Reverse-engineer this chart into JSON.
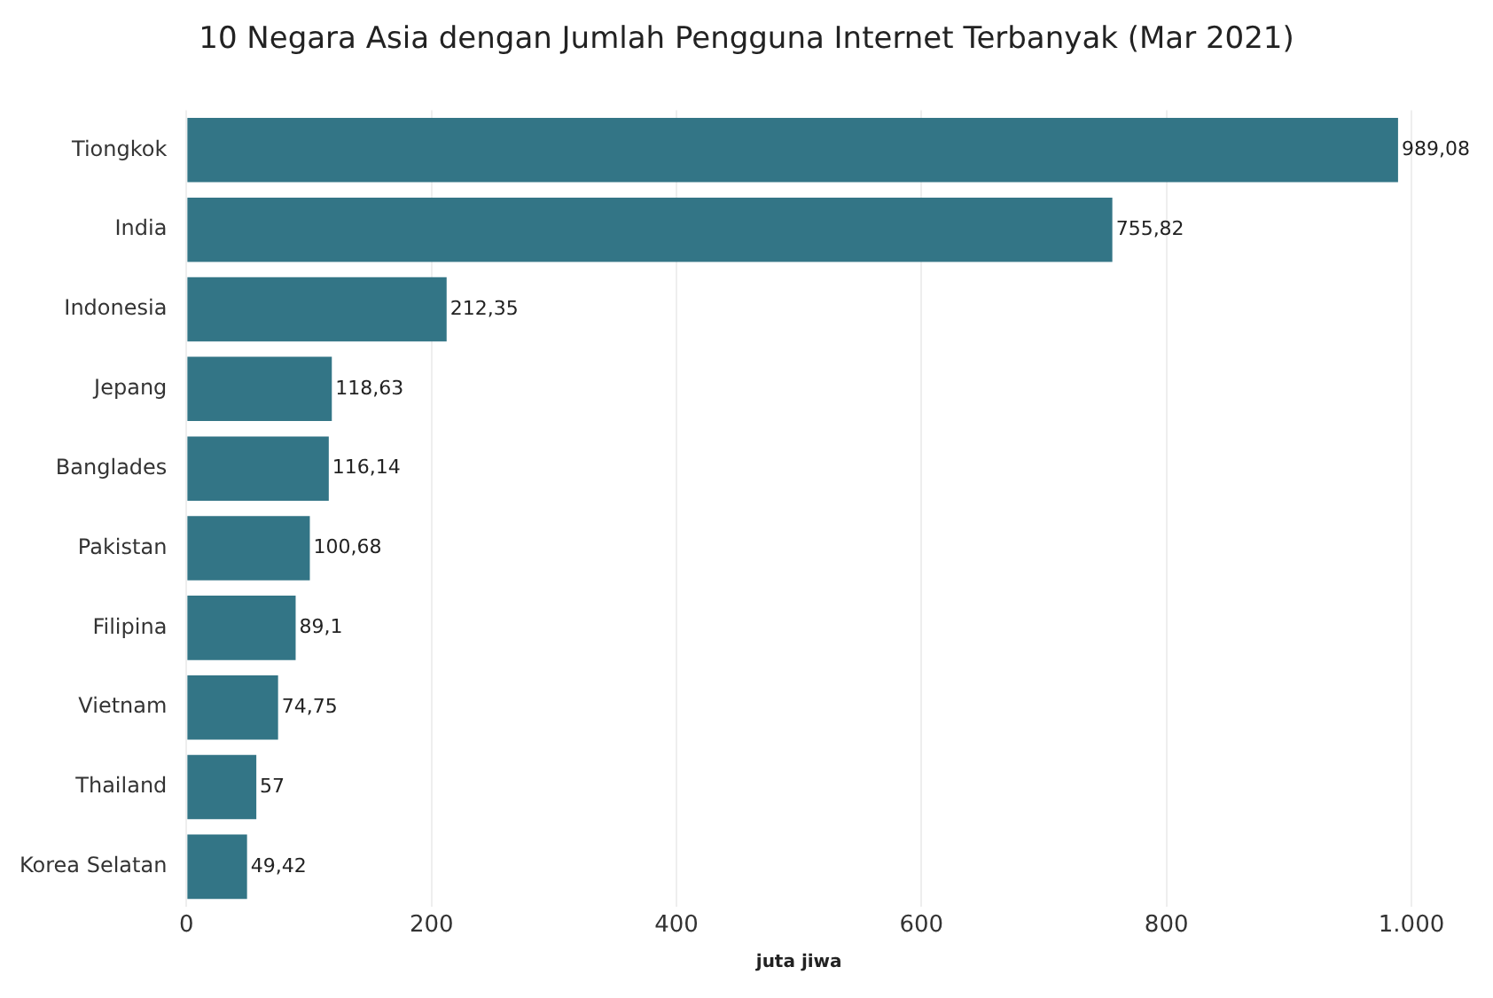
{
  "chart_data": {
    "type": "bar",
    "orientation": "horizontal",
    "title": "10 Negara Asia dengan Jumlah Pengguna Internet Terbanyak (Mar 2021)",
    "xlabel": "juta jiwa",
    "categories": [
      "Tiongkok",
      "India",
      "Indonesia",
      "Jepang",
      "Banglades",
      "Pakistan",
      "Filipina",
      "Vietnam",
      "Thailand",
      "Korea Selatan"
    ],
    "values": [
      989.08,
      755.82,
      212.35,
      118.63,
      116.14,
      100.68,
      89.1,
      74.75,
      57,
      49.42
    ],
    "value_labels": [
      "989,08",
      "755,82",
      "212,35",
      "118,63",
      "116,14",
      "100,68",
      "89,1",
      "74,75",
      "57",
      "49,42"
    ],
    "color": "#337586",
    "xlim": [
      0,
      1000
    ],
    "xticks": [
      0,
      200,
      400,
      600,
      800,
      {
        "value": 1000,
        "label": "1.000"
      }
    ],
    "grid": "x"
  }
}
